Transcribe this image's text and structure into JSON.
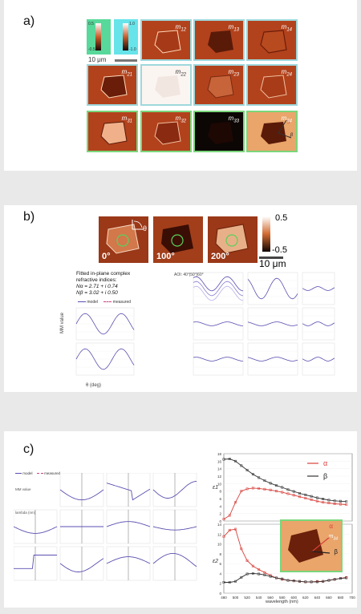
{
  "panel_a": {
    "label": "a)",
    "colorbar_green": {
      "top": "0.5",
      "bottom": "-0.5"
    },
    "colorbar_cyan": {
      "top": "1.0",
      "bottom": "-1.0"
    },
    "scalebar": "10 μm",
    "tiles": [
      {
        "row": 1,
        "col": 2,
        "label": "m",
        "sub": "12"
      },
      {
        "row": 1,
        "col": 3,
        "label": "m",
        "sub": "13"
      },
      {
        "row": 1,
        "col": 4,
        "label": "m",
        "sub": "14"
      },
      {
        "row": 2,
        "col": 1,
        "label": "m",
        "sub": "21"
      },
      {
        "row": 2,
        "col": 2,
        "label": "m",
        "sub": "22"
      },
      {
        "row": 2,
        "col": 3,
        "label": "m",
        "sub": "23"
      },
      {
        "row": 2,
        "col": 4,
        "label": "m",
        "sub": "24"
      },
      {
        "row": 3,
        "col": 1,
        "label": "m",
        "sub": "31"
      },
      {
        "row": 3,
        "col": 2,
        "label": "m",
        "sub": "32"
      },
      {
        "row": 3,
        "col": 3,
        "label": "m",
        "sub": "33"
      },
      {
        "row": 3,
        "col": 4,
        "label": "m",
        "sub": "34"
      }
    ],
    "axis_alpha": "α",
    "axis_beta": "β"
  },
  "panel_b": {
    "label": "b)",
    "angles": [
      "0°",
      "100°",
      "200°"
    ],
    "theta": "θ",
    "colorbar": {
      "top": "0.5",
      "bottom": "-0.5"
    },
    "scalebar": "10 μm",
    "fit_title_1": "Fitted in-plane complex",
    "fit_title_2": "refractive indices:",
    "n_alpha": "Nα = 2.71 + i 0.74",
    "n_beta": "Nβ = 3.02 + i 0.50",
    "legend_model": "model",
    "legend_measured": "measured",
    "aoi": "AOI: 40°|50°|60°",
    "ylabel": "MM value",
    "xlabel": "θ (deg)"
  },
  "panel_c": {
    "label": "c)",
    "legend_model": "model",
    "legend_measured": "measured",
    "ylabel": "MM value",
    "xlabel": "lambda (nm)",
    "legend_alpha": "α",
    "legend_beta": "β",
    "inset_label": "m",
    "inset_sub": "34",
    "top_ylabel": "ε1",
    "bottom_ylabel": "ε2",
    "wavelength_label": "wavelength (nm)"
  },
  "chart_data": [
    {
      "type": "line",
      "xlabel": "wavelength (nm)",
      "ylabel": "ε1",
      "x": [
        480,
        490,
        500,
        510,
        520,
        530,
        540,
        550,
        560,
        570,
        580,
        590,
        600,
        610,
        620,
        630,
        640,
        650,
        660,
        670,
        680,
        690
      ],
      "ylim": [
        0,
        18
      ],
      "xticks": [
        "480",
        "500",
        "520",
        "540",
        "560",
        "580",
        "600",
        "620",
        "640",
        "660",
        "680",
        "700"
      ],
      "yticks": [
        "0",
        "2",
        "4",
        "6",
        "8",
        "10",
        "12",
        "14",
        "16",
        "18"
      ],
      "series": [
        {
          "name": "α",
          "color": "#d9403a",
          "values": [
            0.5,
            1.5,
            5.0,
            8.0,
            8.6,
            8.8,
            8.7,
            8.5,
            8.3,
            8.0,
            7.7,
            7.3,
            6.9,
            6.5,
            6.1,
            5.7,
            5.3,
            5.0,
            4.8,
            4.6,
            4.5,
            4.4
          ]
        },
        {
          "name": "β",
          "color": "#333333",
          "values": [
            16.5,
            16.6,
            16.0,
            14.8,
            13.6,
            12.5,
            11.6,
            10.8,
            10.1,
            9.5,
            9.0,
            8.4,
            7.9,
            7.4,
            7.0,
            6.6,
            6.2,
            5.9,
            5.6,
            5.4,
            5.3,
            5.2
          ]
        }
      ]
    },
    {
      "type": "line",
      "xlabel": "wavelength (nm)",
      "ylabel": "ε2",
      "x": [
        480,
        490,
        500,
        510,
        520,
        530,
        540,
        550,
        560,
        570,
        580,
        590,
        600,
        610,
        620,
        630,
        640,
        650,
        660,
        670,
        680,
        690
      ],
      "ylim": [
        0,
        14
      ],
      "xticks": [
        "480",
        "500",
        "520",
        "540",
        "560",
        "580",
        "600",
        "620",
        "640",
        "660",
        "680",
        "700"
      ],
      "yticks": [
        "0",
        "2",
        "4",
        "6",
        "8",
        "10",
        "12",
        "14"
      ],
      "series": [
        {
          "name": "α",
          "color": "#d9403a",
          "values": [
            11.5,
            12.8,
            13.0,
            9.0,
            6.6,
            5.5,
            4.8,
            4.2,
            3.6,
            3.1,
            2.8,
            2.6,
            2.5,
            2.4,
            2.3,
            2.3,
            2.4,
            2.4,
            2.6,
            2.8,
            3.0,
            3.2
          ]
        },
        {
          "name": "β",
          "color": "#333333",
          "values": [
            2.2,
            2.2,
            2.4,
            3.2,
            3.9,
            4.0,
            3.9,
            3.7,
            3.4,
            3.1,
            2.9,
            2.6,
            2.5,
            2.4,
            2.3,
            2.3,
            2.3,
            2.4,
            2.6,
            2.8,
            3.0,
            3.1
          ]
        }
      ]
    }
  ]
}
